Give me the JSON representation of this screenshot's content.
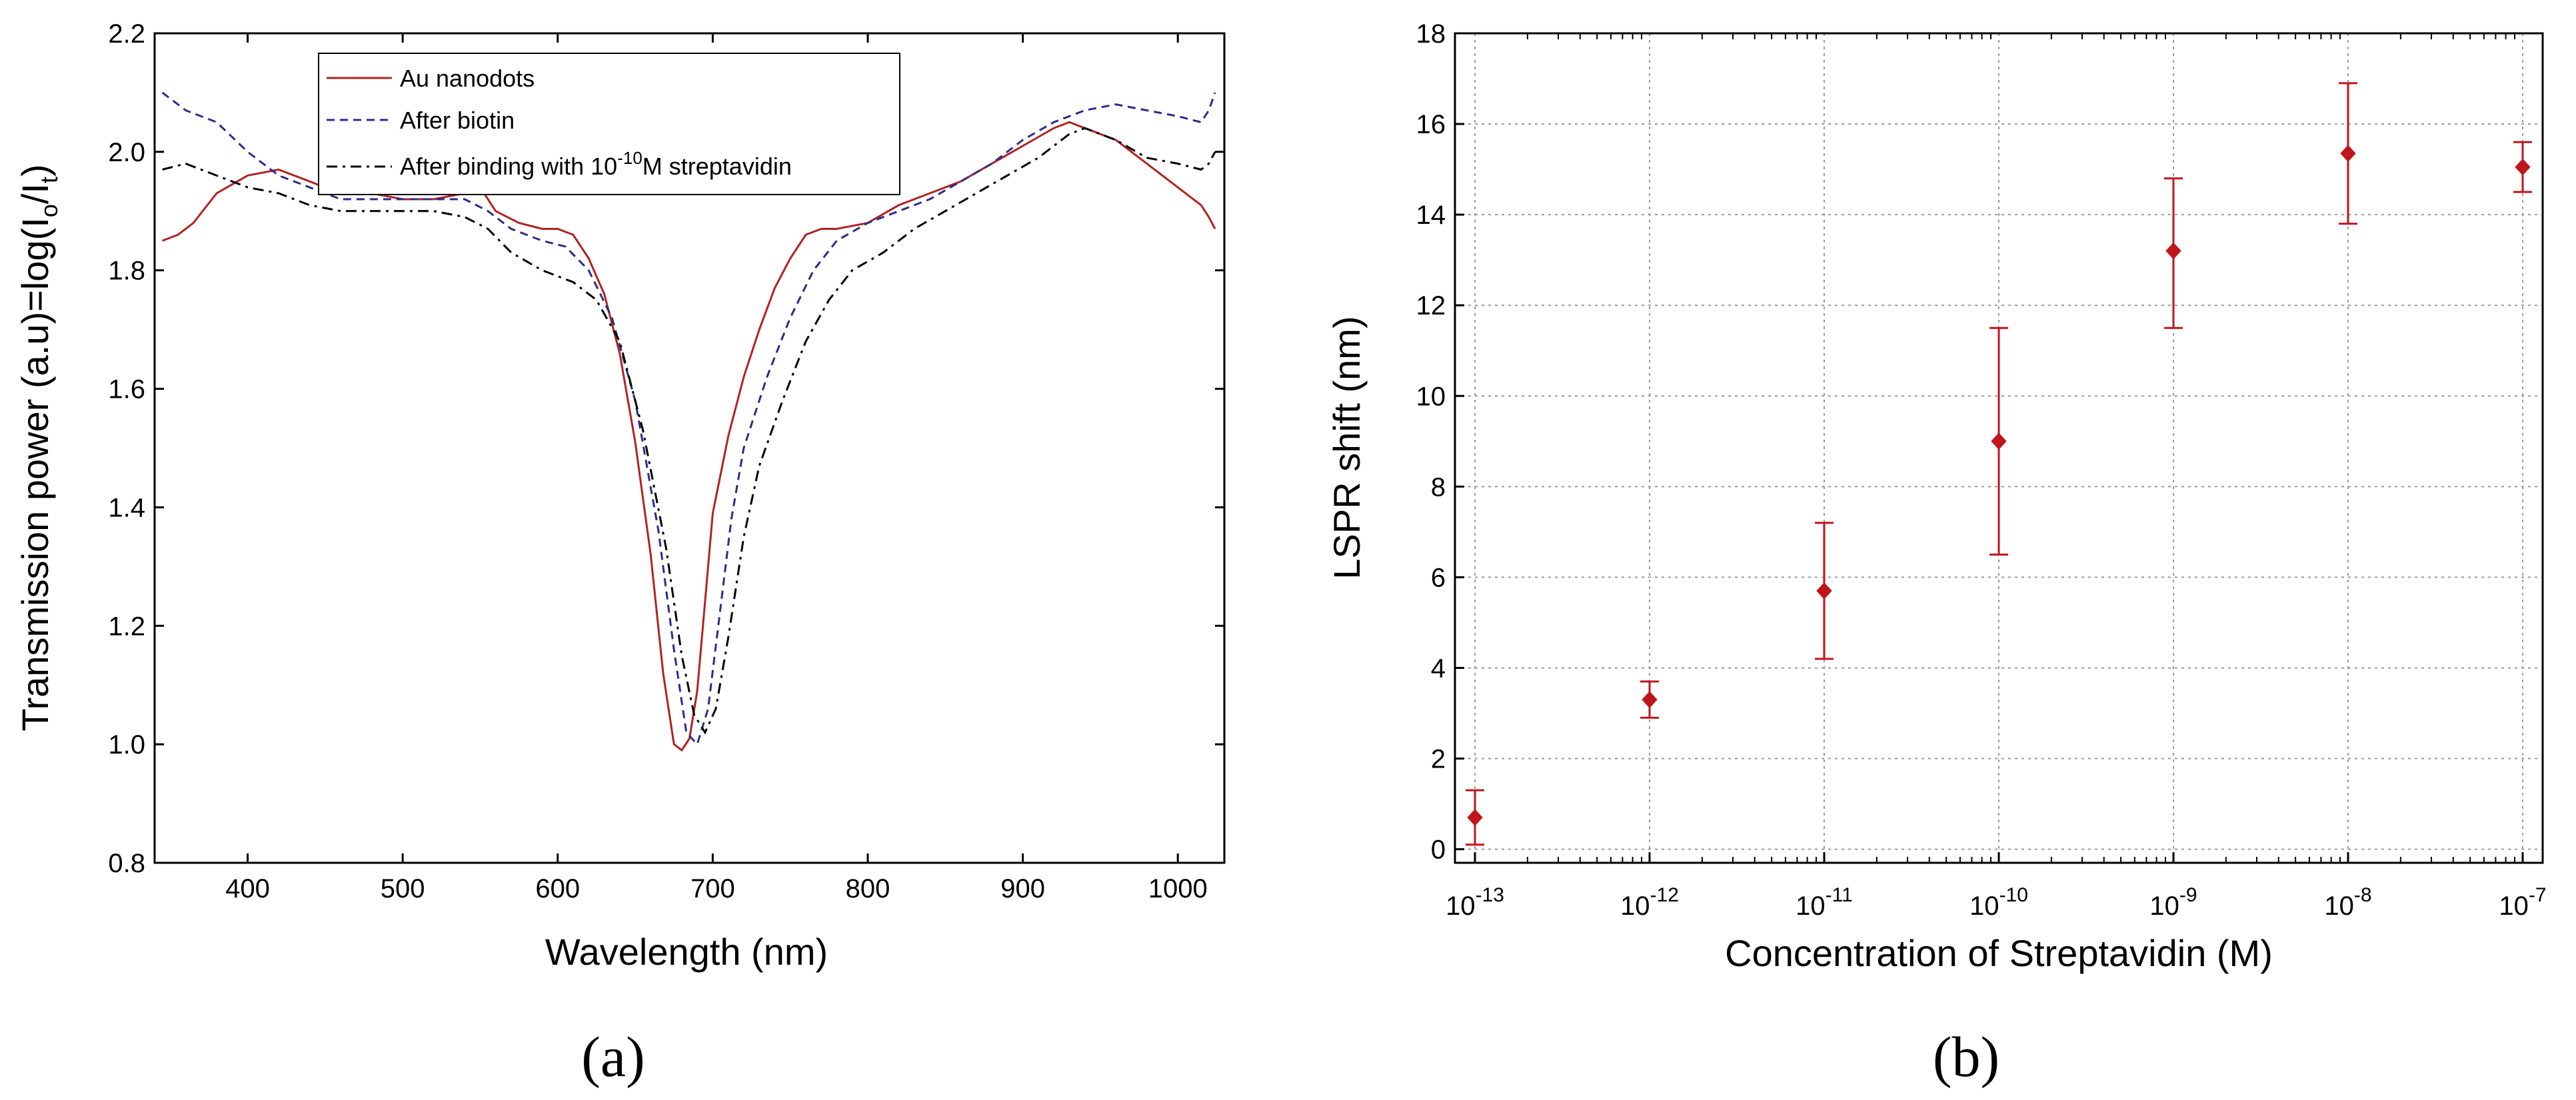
{
  "chart_data": [
    {
      "panel_label": "(a)",
      "type": "line",
      "xlabel": "Wavelength (nm)",
      "ylabel": "Transmission power (a.u)=log(I",
      "ylabel_sub1": "o",
      "ylabel_mid": "/I",
      "ylabel_sub2": "t",
      "ylabel_end": ")",
      "xlim": [
        340,
        1030
      ],
      "ylim": [
        0.8,
        2.2
      ],
      "x_ticks": [
        "400",
        "500",
        "600",
        "700",
        "800",
        "900",
        "1000"
      ],
      "y_ticks": [
        "0.8",
        "1.0",
        "1.2",
        "1.4",
        "1.6",
        "1.8",
        "2.0",
        "2.2"
      ],
      "legend": {
        "placement": "top-center",
        "entry1": "Au nanodots",
        "entry2": "After biotin",
        "entry3_pre": "After binding with 10",
        "entry3_sup": "-10",
        "entry3_post": "M streptavidin"
      },
      "series": [
        {
          "name": "Au nanodots",
          "color": "#b22222",
          "style": "solid",
          "points": [
            [
              345,
              1.85
            ],
            [
              355,
              1.86
            ],
            [
              365,
              1.88
            ],
            [
              380,
              1.93
            ],
            [
              400,
              1.96
            ],
            [
              420,
              1.97
            ],
            [
              440,
              1.95
            ],
            [
              460,
              1.93
            ],
            [
              480,
              1.93
            ],
            [
              500,
              1.92
            ],
            [
              520,
              1.92
            ],
            [
              540,
              1.93
            ],
            [
              550,
              1.94
            ],
            [
              560,
              1.9
            ],
            [
              575,
              1.88
            ],
            [
              590,
              1.87
            ],
            [
              600,
              1.87
            ],
            [
              610,
              1.86
            ],
            [
              620,
              1.82
            ],
            [
              630,
              1.76
            ],
            [
              640,
              1.66
            ],
            [
              650,
              1.51
            ],
            [
              660,
              1.32
            ],
            [
              668,
              1.12
            ],
            [
              675,
              1.0
            ],
            [
              680,
              0.99
            ],
            [
              685,
              1.01
            ],
            [
              690,
              1.09
            ],
            [
              695,
              1.24
            ],
            [
              700,
              1.39
            ],
            [
              710,
              1.52
            ],
            [
              720,
              1.62
            ],
            [
              730,
              1.7
            ],
            [
              740,
              1.77
            ],
            [
              750,
              1.82
            ],
            [
              760,
              1.86
            ],
            [
              770,
              1.87
            ],
            [
              780,
              1.87
            ],
            [
              800,
              1.88
            ],
            [
              820,
              1.91
            ],
            [
              840,
              1.93
            ],
            [
              860,
              1.95
            ],
            [
              880,
              1.98
            ],
            [
              900,
              2.01
            ],
            [
              920,
              2.04
            ],
            [
              930,
              2.05
            ],
            [
              940,
              2.04
            ],
            [
              960,
              2.02
            ],
            [
              980,
              1.98
            ],
            [
              1000,
              1.94
            ],
            [
              1015,
              1.91
            ],
            [
              1020,
              1.89
            ],
            [
              1024,
              1.87
            ]
          ]
        },
        {
          "name": "After biotin",
          "color": "#2b2b8c",
          "style": "dashed",
          "points": [
            [
              345,
              2.1
            ],
            [
              360,
              2.07
            ],
            [
              380,
              2.05
            ],
            [
              400,
              2.0
            ],
            [
              420,
              1.96
            ],
            [
              440,
              1.94
            ],
            [
              460,
              1.92
            ],
            [
              480,
              1.92
            ],
            [
              500,
              1.92
            ],
            [
              520,
              1.92
            ],
            [
              540,
              1.92
            ],
            [
              555,
              1.9
            ],
            [
              570,
              1.87
            ],
            [
              590,
              1.85
            ],
            [
              605,
              1.84
            ],
            [
              620,
              1.8
            ],
            [
              635,
              1.72
            ],
            [
              650,
              1.58
            ],
            [
              665,
              1.36
            ],
            [
              675,
              1.16
            ],
            [
              683,
              1.02
            ],
            [
              690,
              1.0
            ],
            [
              697,
              1.06
            ],
            [
              705,
              1.23
            ],
            [
              712,
              1.38
            ],
            [
              720,
              1.5
            ],
            [
              735,
              1.62
            ],
            [
              750,
              1.72
            ],
            [
              765,
              1.8
            ],
            [
              780,
              1.85
            ],
            [
              800,
              1.88
            ],
            [
              820,
              1.9
            ],
            [
              840,
              1.92
            ],
            [
              860,
              1.95
            ],
            [
              880,
              1.98
            ],
            [
              900,
              2.02
            ],
            [
              920,
              2.05
            ],
            [
              940,
              2.07
            ],
            [
              960,
              2.08
            ],
            [
              980,
              2.07
            ],
            [
              1000,
              2.06
            ],
            [
              1015,
              2.05
            ],
            [
              1020,
              2.07
            ],
            [
              1024,
              2.1
            ]
          ]
        },
        {
          "name": "After binding with 10^-10 M streptavidin",
          "color": "#000000",
          "style": "dashdot",
          "points": [
            [
              345,
              1.97
            ],
            [
              360,
              1.98
            ],
            [
              380,
              1.96
            ],
            [
              400,
              1.94
            ],
            [
              420,
              1.93
            ],
            [
              440,
              1.91
            ],
            [
              460,
              1.9
            ],
            [
              480,
              1.9
            ],
            [
              500,
              1.9
            ],
            [
              520,
              1.9
            ],
            [
              540,
              1.89
            ],
            [
              555,
              1.87
            ],
            [
              570,
              1.83
            ],
            [
              590,
              1.8
            ],
            [
              610,
              1.78
            ],
            [
              625,
              1.75
            ],
            [
              640,
              1.68
            ],
            [
              655,
              1.53
            ],
            [
              670,
              1.33
            ],
            [
              680,
              1.15
            ],
            [
              688,
              1.05
            ],
            [
              695,
              1.02
            ],
            [
              702,
              1.06
            ],
            [
              710,
              1.18
            ],
            [
              720,
              1.35
            ],
            [
              730,
              1.47
            ],
            [
              745,
              1.58
            ],
            [
              760,
              1.68
            ],
            [
              775,
              1.75
            ],
            [
              790,
              1.8
            ],
            [
              810,
              1.83
            ],
            [
              830,
              1.87
            ],
            [
              850,
              1.9
            ],
            [
              870,
              1.93
            ],
            [
              890,
              1.96
            ],
            [
              910,
              1.99
            ],
            [
              930,
              2.03
            ],
            [
              940,
              2.04
            ],
            [
              960,
              2.02
            ],
            [
              980,
              1.99
            ],
            [
              1000,
              1.98
            ],
            [
              1015,
              1.97
            ],
            [
              1020,
              1.98
            ],
            [
              1024,
              2.0
            ]
          ]
        }
      ]
    },
    {
      "panel_label": "(b)",
      "type": "scatter",
      "xlabel": "Concentration of Streptavidin (M)",
      "ylabel": "LSPR shift (nm)",
      "x_scale": "log",
      "xlim_exponent": [
        -13,
        -7
      ],
      "ylim": [
        -0.3,
        18
      ],
      "x_tick_base": "10",
      "x_tick_exponents": [
        "-13",
        "-12",
        "-11",
        "-10",
        "-9",
        "-8",
        "-7"
      ],
      "y_ticks": [
        "0",
        "2",
        "4",
        "6",
        "8",
        "10",
        "12",
        "14",
        "16",
        "18"
      ],
      "grid": true,
      "marker_color": "#c0151b",
      "points": [
        {
          "exponent": -13,
          "value": 0.7,
          "err_low": 0.1,
          "err_high": 1.3
        },
        {
          "exponent": -12,
          "value": 3.3,
          "err_low": 2.9,
          "err_high": 3.7
        },
        {
          "exponent": -11,
          "value": 5.7,
          "err_low": 4.2,
          "err_high": 7.2
        },
        {
          "exponent": -10,
          "value": 9.0,
          "err_low": 6.5,
          "err_high": 11.5
        },
        {
          "exponent": -9,
          "value": 13.2,
          "err_low": 11.5,
          "err_high": 14.8
        },
        {
          "exponent": -8,
          "value": 15.35,
          "err_low": 13.8,
          "err_high": 16.9
        },
        {
          "exponent": -7,
          "value": 15.05,
          "err_low": 14.5,
          "err_high": 15.6
        }
      ]
    }
  ]
}
